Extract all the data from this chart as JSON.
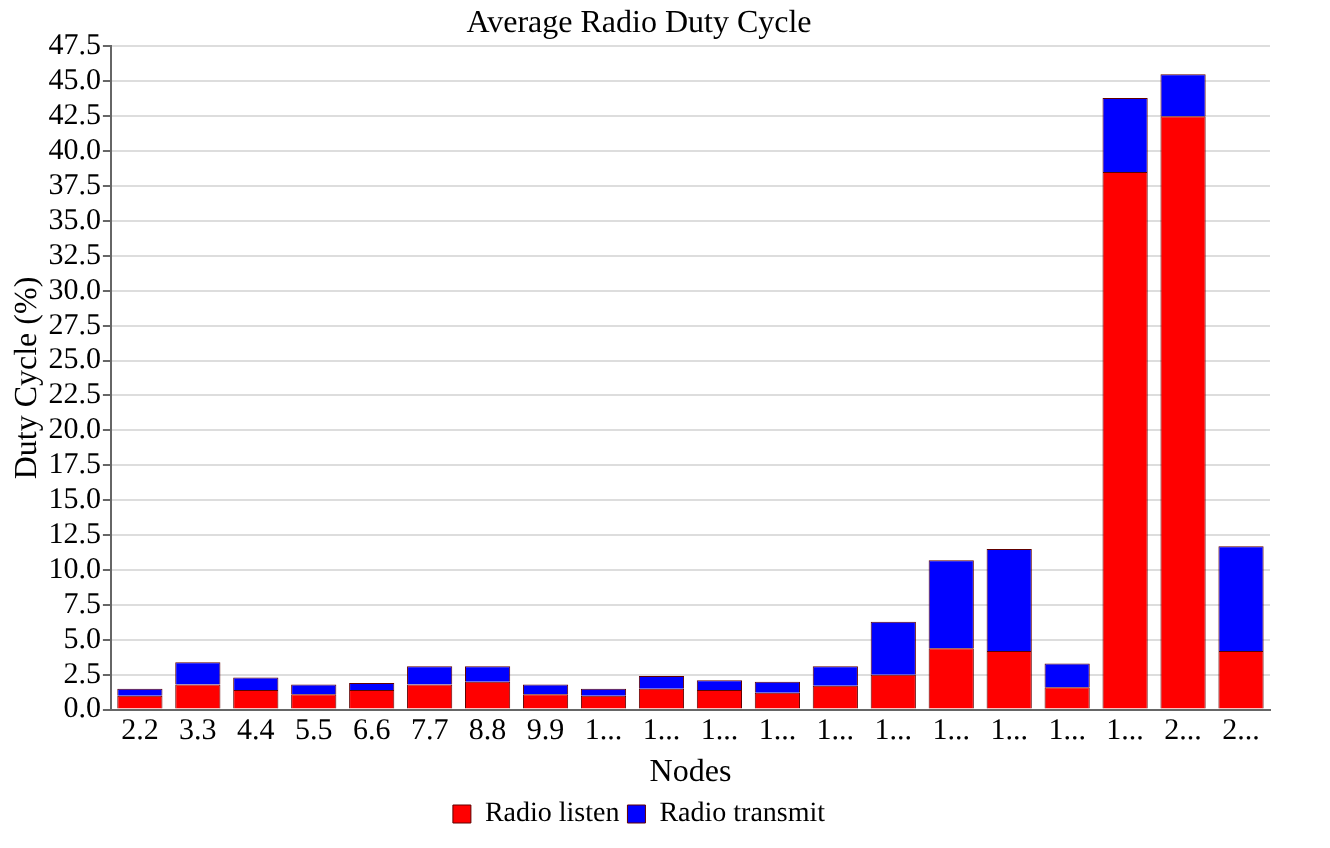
{
  "chart_data": {
    "type": "bar",
    "title": "Average Radio Duty Cycle",
    "xlabel": "Nodes",
    "ylabel": "Duty Cycle (%)",
    "categories": [
      "2.2",
      "3.3",
      "4.4",
      "5.5",
      "6.6",
      "7.7",
      "8.8",
      "9.9",
      "1...",
      "1...",
      "1...",
      "1...",
      "1...",
      "1...",
      "1...",
      "1...",
      "1...",
      "1...",
      "2...",
      "2..."
    ],
    "stacked": true,
    "grid": "y",
    "legend": "bottom",
    "ylim": [
      0,
      47.5
    ],
    "yticks": [
      {
        "value": 0,
        "label": "0.0"
      },
      {
        "value": 2.5,
        "label": "2.5"
      },
      {
        "value": 5,
        "label": "5.0"
      },
      {
        "value": 7.5,
        "label": "7.5"
      },
      {
        "value": 10,
        "label": "10.0"
      },
      {
        "value": 12.5,
        "label": "12.5"
      },
      {
        "value": 15,
        "label": "15.0"
      },
      {
        "value": 17.5,
        "label": "17.5"
      },
      {
        "value": 20,
        "label": "20.0"
      },
      {
        "value": 22.5,
        "label": "22.5"
      },
      {
        "value": 25,
        "label": "25.0"
      },
      {
        "value": 27.5,
        "label": "27.5"
      },
      {
        "value": 30,
        "label": "30.0"
      },
      {
        "value": 32.5,
        "label": "32.5"
      },
      {
        "value": 35,
        "label": "35.0"
      },
      {
        "value": 37.5,
        "label": "37.5"
      },
      {
        "value": 40,
        "label": "40.0"
      },
      {
        "value": 42.5,
        "label": "42.5"
      },
      {
        "value": 45,
        "label": "45.0"
      },
      {
        "value": 47.5,
        "label": "47.5"
      }
    ],
    "series": [
      {
        "name": "Radio listen",
        "color": "#ff0000",
        "values": [
          1.0,
          1.8,
          1.4,
          1.1,
          1.4,
          1.8,
          2.0,
          1.1,
          1.0,
          1.5,
          1.4,
          1.2,
          1.7,
          2.5,
          4.4,
          4.2,
          1.6,
          38.5,
          42.5,
          4.2
        ]
      },
      {
        "name": "Radio transmit",
        "color": "#0000ff",
        "values": [
          0.5,
          1.6,
          0.9,
          0.7,
          0.5,
          1.3,
          1.1,
          0.7,
          0.5,
          0.9,
          0.7,
          0.8,
          1.4,
          3.8,
          6.3,
          7.3,
          1.7,
          5.3,
          3.0,
          7.5
        ]
      }
    ]
  }
}
